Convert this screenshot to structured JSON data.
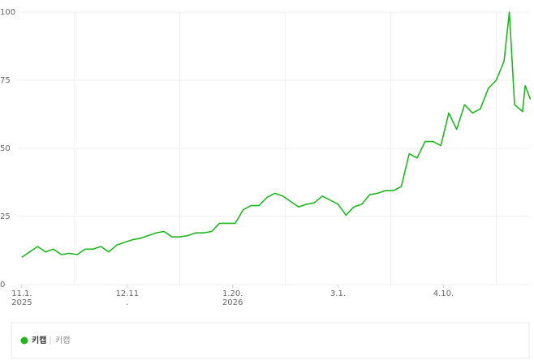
{
  "chart_data": {
    "type": "line",
    "x": [
      0,
      3,
      6,
      9,
      12,
      15,
      18,
      21,
      24,
      27,
      30,
      33,
      36,
      39,
      42,
      45,
      48,
      51,
      54,
      57,
      60,
      63,
      66,
      69,
      72,
      75,
      78,
      81,
      84,
      87,
      90,
      93,
      96,
      99,
      102,
      105,
      108,
      111,
      114,
      117,
      120,
      123,
      126,
      129,
      132,
      135,
      138,
      141,
      144,
      147,
      150,
      153,
      156,
      159,
      162,
      165,
      168,
      171,
      174,
      177,
      180,
      183,
      185,
      187,
      190,
      191,
      193
    ],
    "series": [
      {
        "name": "키캡",
        "color": "#1fb71f",
        "values": [
          10,
          12,
          14,
          12,
          13,
          11,
          11.5,
          11,
          13,
          13,
          14,
          12,
          14.5,
          15.5,
          16.5,
          17,
          18,
          19,
          19.5,
          17.5,
          17.5,
          18,
          19,
          19,
          19.5,
          22.5,
          22.5,
          22.5,
          27.5,
          29,
          29,
          32,
          33.5,
          32.5,
          30.5,
          28.5,
          29.5,
          30,
          32.5,
          31,
          29.5,
          25.5,
          28.5,
          29.5,
          33,
          33.5,
          34.5,
          34.5,
          36,
          48,
          46.5,
          52.5,
          52.5,
          51,
          63,
          57,
          66,
          63,
          64.5,
          72,
          75,
          82,
          100,
          66,
          63.5,
          73,
          68
        ]
      }
    ],
    "xlim": [
      -1.5,
      192.5
    ],
    "xticks": [
      {
        "value": 0,
        "label": "11.1.",
        "label2": "2025"
      },
      {
        "value": 40,
        "label": "12.11",
        "label2": "."
      },
      {
        "value": 80,
        "label": "1.20.",
        "label2": "2026"
      },
      {
        "value": 120,
        "label": "3.1."
      },
      {
        "value": 160,
        "label": "4.10."
      }
    ],
    "ylim": [
      0,
      100
    ],
    "yticks": [
      0,
      25,
      50,
      75,
      100
    ],
    "grid": true
  }
}
